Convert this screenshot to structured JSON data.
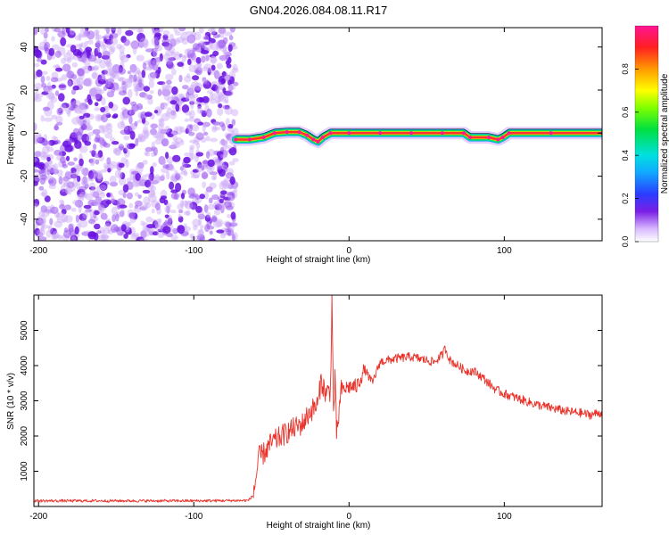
{
  "figure_title": "GN04.2026.084.08.11.R17",
  "colors": {
    "snr_line": "#e8322a",
    "spectral_purple": "#7a1fe6",
    "axis": "#000000"
  },
  "chart_data": [
    {
      "type": "heatmap",
      "xlabel": "Height of straight line (km)",
      "ylabel": "Frequency (Hz)",
      "xlim": [
        -203,
        163
      ],
      "ylim": [
        -50,
        49
      ],
      "xticks": [
        -200,
        -100,
        0,
        100
      ],
      "xtick_labels": [
        "-200",
        "-100",
        "0",
        "100"
      ],
      "yticks": [
        -40,
        -20,
        0,
        20,
        40
      ],
      "ytick_labels": [
        "-40",
        "-20",
        "0",
        "20",
        "40"
      ],
      "noise_region_x": [
        -203,
        -73
      ],
      "ridge_frequency": [
        [
          -73,
          -3
        ],
        [
          -64,
          -3
        ],
        [
          -55,
          -2
        ],
        [
          -48,
          0
        ],
        [
          -40,
          0.5
        ],
        [
          -32,
          0.5
        ],
        [
          -27,
          -1
        ],
        [
          -23,
          -3
        ],
        [
          -20,
          -4
        ],
        [
          -17,
          -2
        ],
        [
          -12,
          0
        ],
        [
          0,
          0
        ],
        [
          20,
          0
        ],
        [
          40,
          0
        ],
        [
          60,
          0
        ],
        [
          74,
          0
        ],
        [
          78,
          -2
        ],
        [
          90,
          -2
        ],
        [
          96,
          -3
        ],
        [
          99,
          -2
        ],
        [
          103,
          0
        ],
        [
          130,
          0
        ],
        [
          163,
          0
        ]
      ],
      "colorbar": {
        "label": "Normalized spectral amplitude",
        "ticks": [
          0.0,
          0.2,
          0.4,
          0.6,
          0.8
        ],
        "tick_labels": [
          "0.0",
          "0.2",
          "0.4",
          "0.6",
          "0.8"
        ]
      }
    },
    {
      "type": "line",
      "xlabel": "Height of straight line (km)",
      "ylabel": "SNR (10 * v/v)",
      "xlim": [
        -203,
        163
      ],
      "ylim": [
        0,
        6000
      ],
      "xticks": [
        -200,
        -100,
        0,
        100
      ],
      "xtick_labels": [
        "-200",
        "-100",
        "0",
        "100"
      ],
      "yticks": [
        1000,
        2000,
        3000,
        4000,
        5000
      ],
      "ytick_labels": [
        "1000",
        "2000",
        "3000",
        "4000",
        "5000"
      ],
      "series": [
        {
          "name": "SNR",
          "x": [
            -203,
            -150,
            -100,
            -65,
            -62,
            -60,
            -58,
            -55,
            -50,
            -40,
            -30,
            -25,
            -20,
            -18,
            -15,
            -12,
            -11,
            -10,
            -9,
            -8,
            -5,
            0,
            5,
            10,
            15,
            20,
            25,
            30,
            40,
            50,
            55,
            60,
            62,
            65,
            70,
            75,
            80,
            85,
            90,
            95,
            100,
            110,
            120,
            130,
            140,
            150,
            155,
            160,
            163
          ],
          "y": [
            160,
            160,
            160,
            170,
            300,
            800,
            1400,
            1500,
            1800,
            2100,
            2350,
            2700,
            2900,
            3600,
            3200,
            3300,
            6000,
            2600,
            3600,
            2000,
            3300,
            3400,
            3400,
            3900,
            3500,
            4100,
            4150,
            4200,
            4250,
            4150,
            4100,
            4300,
            4500,
            4150,
            4000,
            3850,
            3850,
            3700,
            3500,
            3300,
            3200,
            3050,
            2900,
            2800,
            2700,
            2650,
            2600,
            2650,
            2650
          ]
        }
      ]
    }
  ]
}
